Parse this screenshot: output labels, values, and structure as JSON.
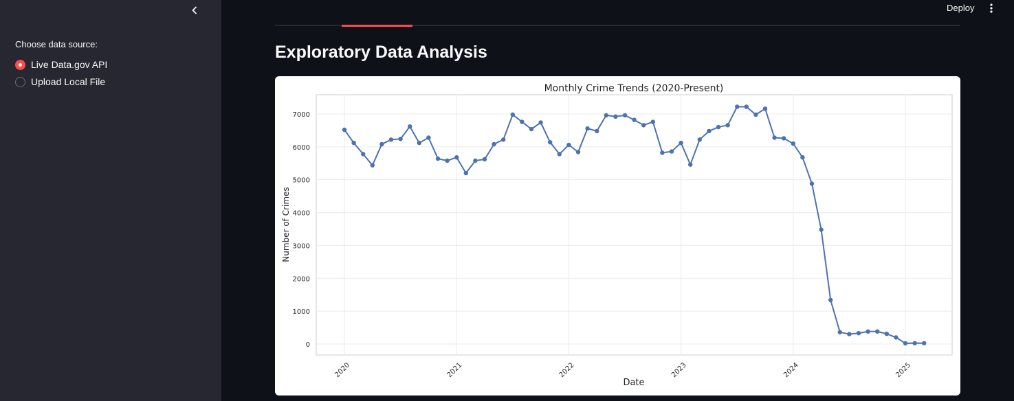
{
  "sidebar": {
    "source_label": "Choose data source:",
    "options": [
      {
        "label": "Live Data.gov API",
        "selected": true
      },
      {
        "label": "Upload Local File",
        "selected": false
      }
    ],
    "collapse_icon": "chevron-left-icon"
  },
  "header": {
    "deploy_label": "Deploy",
    "menu_icon": "more-vertical-icon"
  },
  "tabs": {
    "active_index": 1,
    "accent_color": "#ff4b4b"
  },
  "main": {
    "title": "Exploratory Data Analysis"
  },
  "chart_data": {
    "type": "line",
    "title": "Monthly Crime Trends (2020-Present)",
    "xlabel": "Date",
    "ylabel": "Number of Crimes",
    "x_ticks": [
      "2020",
      "2021",
      "2022",
      "2023",
      "2024",
      "2025"
    ],
    "y_ticks": [
      0,
      1000,
      2000,
      3000,
      4000,
      5000,
      6000,
      7000
    ],
    "grid": true,
    "line_color": "#4c72b0",
    "x_start": "2020-01",
    "series": [
      {
        "values": [
          6520,
          6120,
          5780,
          5440,
          6080,
          6220,
          6240,
          6620,
          6120,
          6280,
          5640,
          5580,
          5680,
          5200,
          5580,
          5620,
          6080,
          6220,
          6980,
          6760,
          6540,
          6740,
          6140,
          5780,
          6060,
          5840,
          6560,
          6480,
          6960,
          6920,
          6960,
          6820,
          6660,
          6760,
          5820,
          5860,
          6120,
          5460,
          6220,
          6480,
          6600,
          6660,
          7220,
          7220,
          6980,
          7160,
          6280,
          6260,
          6100,
          5680,
          4880,
          3480,
          1340,
          360,
          300,
          330,
          380,
          380,
          310,
          200,
          20,
          25,
          25
        ]
      }
    ]
  }
}
